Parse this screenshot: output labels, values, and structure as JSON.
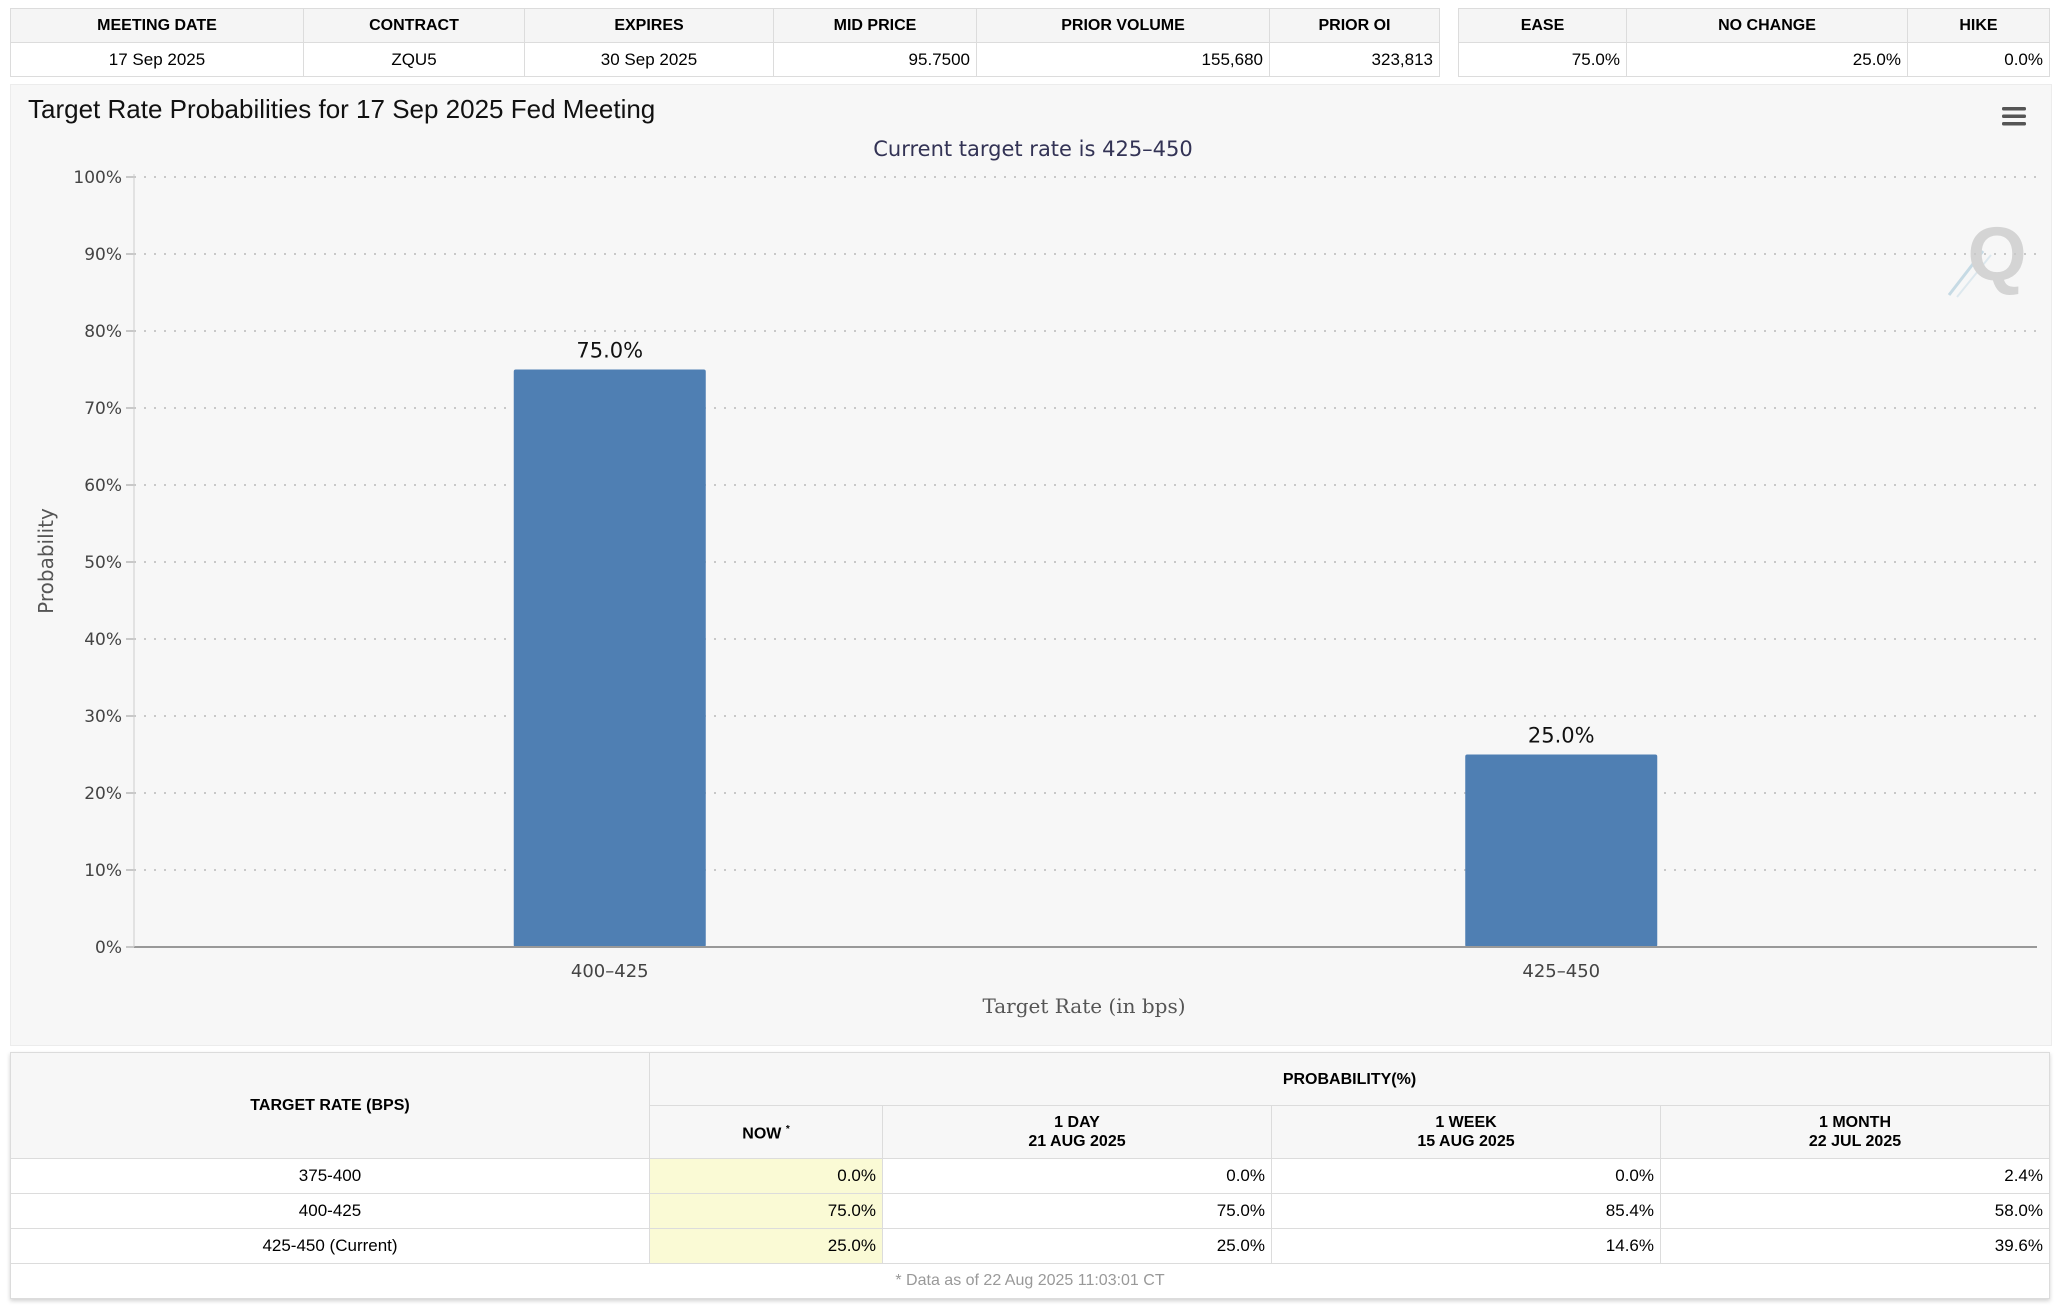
{
  "contract_table": {
    "headers": [
      "MEETING DATE",
      "CONTRACT",
      "EXPIRES",
      "MID PRICE",
      "PRIOR VOLUME",
      "PRIOR OI"
    ],
    "row": [
      "17 Sep 2025",
      "ZQU5",
      "30 Sep 2025",
      "95.7500",
      "155,680",
      "323,813"
    ]
  },
  "summary_table": {
    "headers": [
      "EASE",
      "NO CHANGE",
      "HIKE"
    ],
    "row": [
      "75.0%",
      "25.0%",
      "0.0%"
    ]
  },
  "chart_panel": {
    "title": "Target Rate Probabilities for 17 Sep 2025 Fed Meeting",
    "menu_icon": "hamburger-menu-icon",
    "watermark_icon": "cme-fedwatch-q-logo"
  },
  "chart_data": {
    "type": "bar",
    "title": "Current target rate is 425–450",
    "xlabel": "Target Rate (in bps)",
    "ylabel": "Probability",
    "categories": [
      "400–425",
      "425–450"
    ],
    "values": [
      75.0,
      25.0
    ],
    "data_labels": [
      "75.0%",
      "25.0%"
    ],
    "ylim": [
      0,
      100
    ],
    "yticks": [
      "0%",
      "10%",
      "20%",
      "30%",
      "40%",
      "50%",
      "60%",
      "70%",
      "80%",
      "90%",
      "100%"
    ],
    "grid": true,
    "bar_color": "#4f7fb3"
  },
  "probability_table": {
    "rate_header": "TARGET RATE (BPS)",
    "group_header": "PROBABILITY(%)",
    "columns": [
      {
        "label": "NOW",
        "sup": "*",
        "date": ""
      },
      {
        "label": "1 DAY",
        "sup": "",
        "date": "21 AUG 2025"
      },
      {
        "label": "1 WEEK",
        "sup": "",
        "date": "15 AUG 2025"
      },
      {
        "label": "1 MONTH",
        "sup": "",
        "date": "22 JUL 2025"
      }
    ],
    "rows": [
      {
        "rate": "375-400",
        "values": [
          "0.0%",
          "0.0%",
          "0.0%",
          "2.4%"
        ]
      },
      {
        "rate": "400-425",
        "values": [
          "75.0%",
          "75.0%",
          "85.4%",
          "58.0%"
        ]
      },
      {
        "rate": "425-450 (Current)",
        "values": [
          "25.0%",
          "25.0%",
          "14.6%",
          "39.6%"
        ]
      }
    ],
    "footnote": "* Data as of 22 Aug 2025 11:03:01 CT"
  }
}
